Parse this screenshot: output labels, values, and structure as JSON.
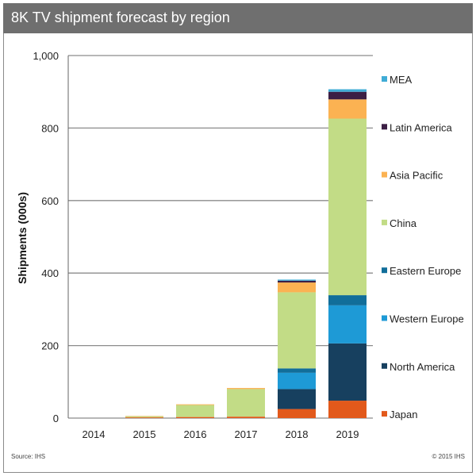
{
  "header": {
    "title": "8K TV shipment forecast by region"
  },
  "footer": {
    "source": "Source: IHS",
    "copyright": "© 2015 IHS"
  },
  "chart_data": {
    "type": "bar",
    "stacked": true,
    "title": "8K TV shipment forecast by region",
    "xlabel": "",
    "ylabel": "Shipments (000s)",
    "ylim": [
      0,
      1000
    ],
    "yticks": [
      0,
      200,
      400,
      600,
      800,
      1000
    ],
    "ytick_labels": [
      "0",
      "200",
      "400",
      "600",
      "800",
      "1,000"
    ],
    "grid": true,
    "legend_position": "right",
    "categories": [
      "2014",
      "2015",
      "2016",
      "2017",
      "2018",
      "2019"
    ],
    "series": [
      {
        "name": "Japan",
        "color": "#e2591b",
        "values": [
          0,
          2,
          3,
          4,
          25,
          48
        ]
      },
      {
        "name": "North America",
        "color": "#17405f",
        "values": [
          0,
          0,
          0,
          0,
          55,
          158
        ]
      },
      {
        "name": "Western Europe",
        "color": "#1e9ad6",
        "values": [
          0,
          0,
          0,
          0,
          45,
          105
        ]
      },
      {
        "name": "Eastern Europe",
        "color": "#116e9a",
        "values": [
          0,
          0,
          0,
          0,
          12,
          28
        ]
      },
      {
        "name": "China",
        "color": "#c2dc86",
        "values": [
          0,
          3,
          33,
          76,
          210,
          487
        ]
      },
      {
        "name": "Asia Pacific",
        "color": "#fbb252",
        "values": [
          0,
          1,
          2,
          3,
          27,
          53
        ]
      },
      {
        "name": "Latin America",
        "color": "#3c1f45",
        "values": [
          0,
          0,
          0,
          0,
          5,
          21
        ]
      },
      {
        "name": "MEA",
        "color": "#40acd6",
        "values": [
          0,
          0,
          0,
          0,
          3,
          7
        ]
      }
    ]
  }
}
